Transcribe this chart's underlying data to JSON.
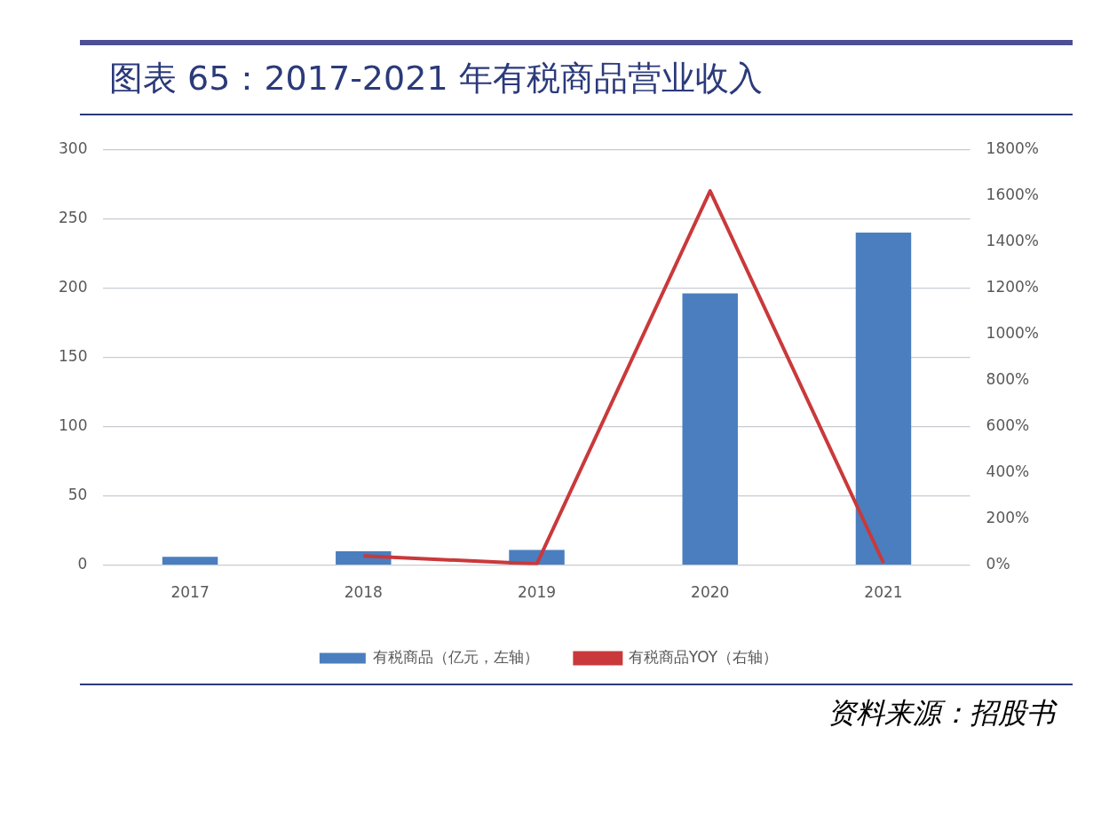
{
  "chart_data": {
    "type": "bar",
    "title": "图表 65：2017-2021 年有税商品营业收入",
    "categories": [
      "2017",
      "2018",
      "2019",
      "2020",
      "2021"
    ],
    "series": [
      {
        "name": "有税商品（亿元，左轴）",
        "color": "#4a7ebf",
        "values": [
          6,
          10,
          11,
          196,
          240
        ]
      },
      {
        "name": "有税商品YOY（右轴）",
        "type": "line",
        "axis": "y2",
        "color": "#c9393b",
        "values": [
          null,
          40,
          5,
          1620,
          10
        ]
      }
    ],
    "ylim": [
      0,
      300
    ],
    "yticks": [
      0,
      50,
      100,
      150,
      200,
      250,
      300
    ],
    "y2lim": [
      0,
      1800
    ],
    "y2ticks": [
      {
        "value": 0,
        "label": "0%"
      },
      {
        "value": 200,
        "label": "200%"
      },
      {
        "value": 400,
        "label": "400%"
      },
      {
        "value": 600,
        "label": "600%"
      },
      {
        "value": 800,
        "label": "800%"
      },
      {
        "value": 1000,
        "label": "1000%"
      },
      {
        "value": 1200,
        "label": "1200%"
      },
      {
        "value": 1400,
        "label": "1400%"
      },
      {
        "value": 1600,
        "label": "1600%"
      },
      {
        "value": 1800,
        "label": "1800%"
      }
    ],
    "grid": "y",
    "legend": "bottom",
    "marker": "none",
    "annotations": [
      "资料来源：招股书"
    ]
  }
}
